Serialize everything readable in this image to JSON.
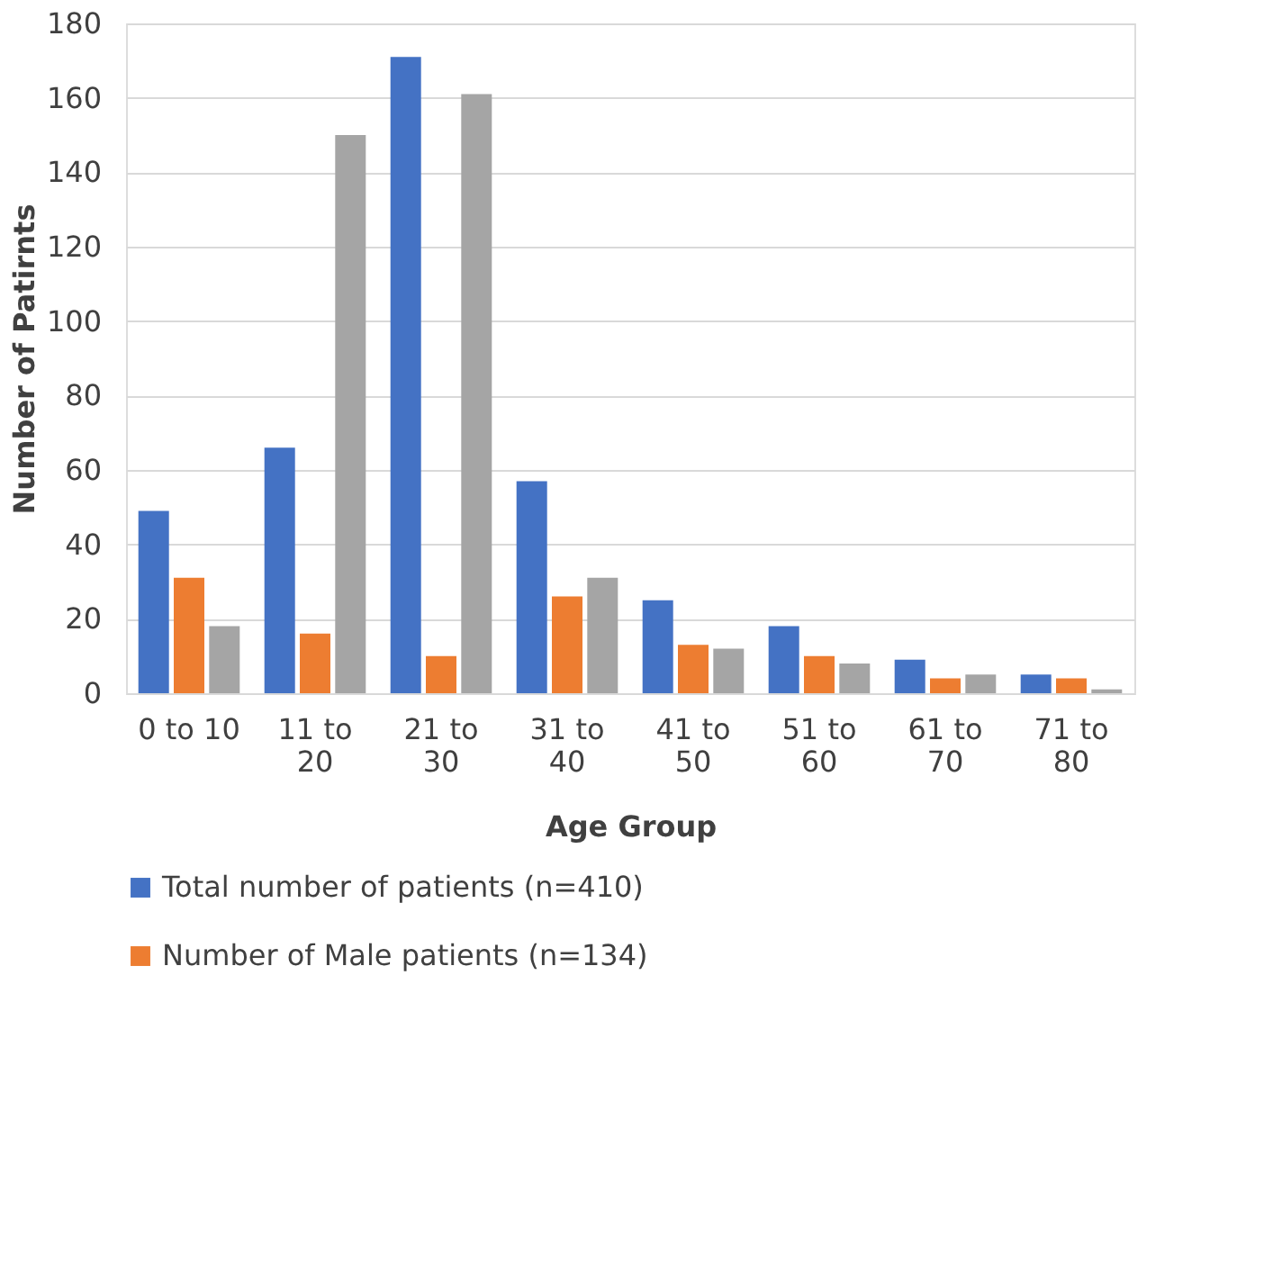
{
  "chart_data": {
    "type": "bar",
    "xlabel": "Age Group",
    "ylabel": "Number of Patirnts",
    "categories": [
      "0 to 10",
      "11 to 20",
      "21 to 30",
      "31 to 40",
      "41 to 50",
      "51 to 60",
      "61 to 70",
      "71 to 80"
    ],
    "series": [
      {
        "name": "Total number of patients (n=410)",
        "color": "#4472c4",
        "values": [
          49,
          66,
          171,
          57,
          25,
          18,
          9,
          5
        ]
      },
      {
        "name": "Number of Male patients (n=134)",
        "color": "#ed7d31",
        "values": [
          31,
          16,
          10,
          26,
          13,
          10,
          4,
          4
        ]
      },
      {
        "color": "#a5a5a5",
        "values": [
          18,
          150,
          161,
          31,
          12,
          8,
          5,
          1
        ]
      }
    ],
    "ylim": [
      0,
      180
    ],
    "yticks": [
      0,
      20,
      40,
      60,
      80,
      100,
      120,
      140,
      160,
      180
    ],
    "grid": "y",
    "legend": "bottom"
  }
}
